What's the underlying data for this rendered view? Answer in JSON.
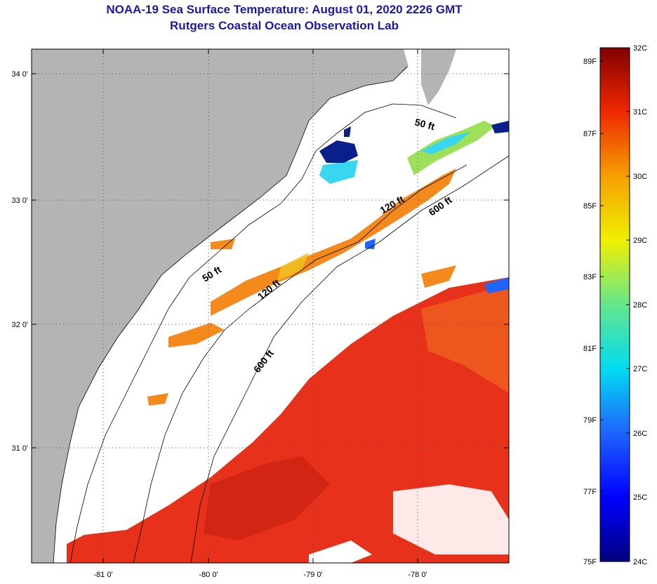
{
  "title": "NOAA-19 Sea Surface Temperature:  August 01, 2020 2226 GMT",
  "subtitle": "Rutgers Coastal Ocean Observation Lab",
  "map": {
    "lat_labels": [
      "34 0'",
      "33 0'",
      "32 0'",
      "31 0'"
    ],
    "lon_labels": [
      "-81 0'",
      "-80 0'",
      "-79 0'",
      "-78 0'"
    ],
    "contours": [
      "50 ft",
      "120 ft",
      "600 ft",
      "50 ft",
      "120 ft",
      "600 ft"
    ],
    "colors": {
      "land": "#b4b4b4",
      "cloud": "#ffffff",
      "warm": "#e8311a",
      "mid": "#f58a1c",
      "cool": "#38d6f0",
      "cold": "#0a1e8c"
    }
  },
  "colorbar": {
    "fahrenheit": [
      "89F",
      "87F",
      "85F",
      "83F",
      "81F",
      "79F",
      "77F",
      "75F"
    ],
    "celsius": [
      "32C",
      "31C",
      "30C",
      "29C",
      "28C",
      "27C",
      "26C",
      "25C",
      "24C"
    ]
  }
}
